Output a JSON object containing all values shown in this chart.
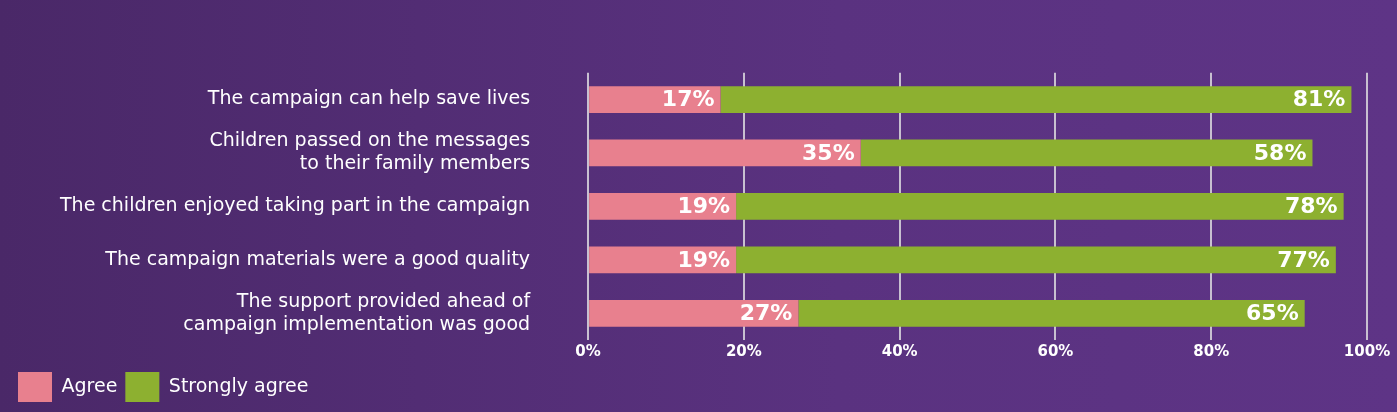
{
  "chart_data": {
    "type": "bar",
    "orientation": "horizontal",
    "stacked": true,
    "categories": [
      "The campaign can help save lives",
      [
        "Children passed on the messages",
        "to their family members"
      ],
      "The children enjoyed taking part in the campaign",
      "The campaign materials were a good quality",
      [
        "The support provided ahead of",
        "campaign implementation was good"
      ]
    ],
    "series": [
      {
        "name": "Agree",
        "color": "#e8808e",
        "values": [
          17,
          35,
          19,
          19,
          27
        ],
        "value_labels": [
          "17%",
          "35%",
          "19%",
          "19%",
          "27%"
        ]
      },
      {
        "name": "Strongly agree",
        "color": "#8db030",
        "values": [
          81,
          58,
          78,
          77,
          65
        ],
        "value_labels": [
          "81%",
          "58%",
          "78%",
          "77%",
          "65%"
        ]
      }
    ],
    "xlim": [
      0,
      100
    ],
    "xticks": [
      {
        "value": 0,
        "label": "0%"
      },
      {
        "value": 20,
        "label": "20%"
      },
      {
        "value": 40,
        "label": "40%"
      },
      {
        "value": 60,
        "label": "60%"
      },
      {
        "value": 80,
        "label": "80%"
      },
      {
        "value": 100,
        "label": "100%"
      }
    ],
    "grid": "x",
    "legend": "bottom"
  }
}
